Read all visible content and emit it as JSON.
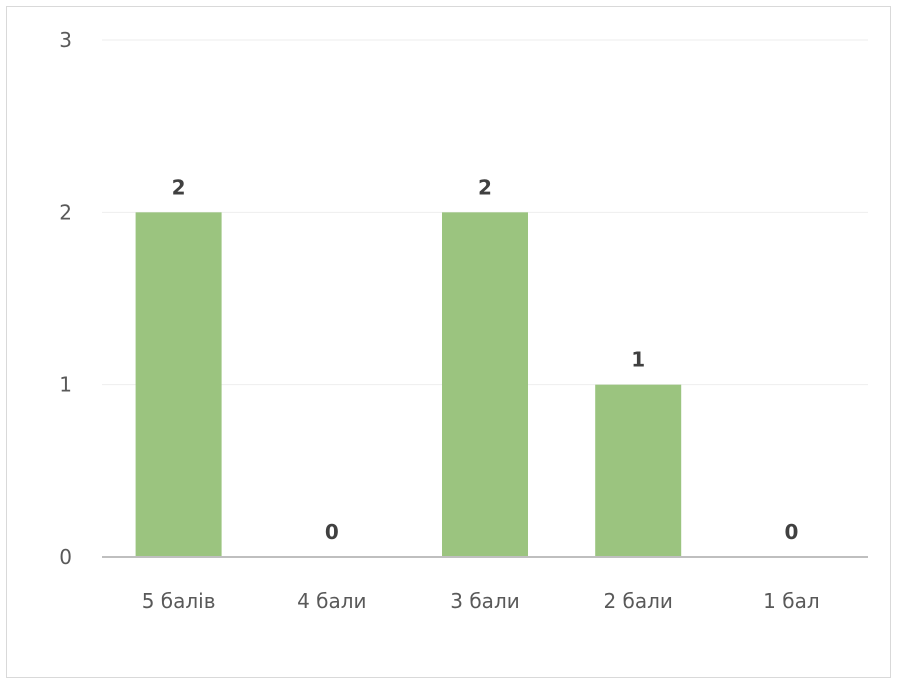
{
  "chart_data": {
    "type": "bar",
    "title": "",
    "xlabel": "",
    "ylabel": "",
    "categories": [
      "5 балів",
      "4 бали",
      "3 бали",
      "2 бали",
      "1 бал"
    ],
    "values": [
      2,
      0,
      2,
      1,
      0
    ],
    "ylim": [
      0,
      3
    ],
    "yticks": [
      "0",
      "1",
      "2",
      "3"
    ],
    "data_labels": [
      "2",
      "0",
      "2",
      "1",
      "0"
    ],
    "grid": true,
    "legend": "none",
    "colors": {
      "bar": "#9bc47f",
      "gridline": "#eeeeee",
      "axis": "#bfbfbf",
      "tick_text": "#595959",
      "data_label_text": "#404040",
      "frame": "#d9d9d9"
    }
  }
}
